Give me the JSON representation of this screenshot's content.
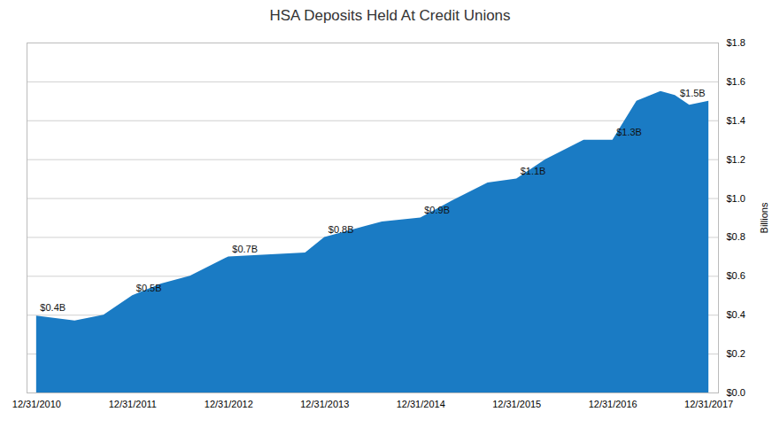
{
  "chart_data": {
    "type": "area",
    "title": "HSA Deposits Held At Credit Unions",
    "y_label": "Billions",
    "color": "#1a7bc4",
    "x": [
      0,
      0.4,
      0.7,
      1.0,
      1.3,
      1.6,
      2.0,
      2.4,
      2.8,
      3.0,
      3.3,
      3.6,
      4.0,
      4.3,
      4.7,
      5.0,
      5.3,
      5.7,
      6.0,
      6.25,
      6.5,
      6.65,
      6.8,
      7.0
    ],
    "values": [
      0.395,
      0.37,
      0.4,
      0.5,
      0.56,
      0.6,
      0.7,
      0.71,
      0.72,
      0.8,
      0.84,
      0.88,
      0.9,
      0.98,
      1.08,
      1.1,
      1.2,
      1.3,
      1.3,
      1.5,
      1.55,
      1.53,
      1.48,
      1.5
    ],
    "xlim": [
      -0.1,
      7.1
    ],
    "xticks": [
      {
        "value": 0,
        "label": "12/31/2010"
      },
      {
        "value": 1,
        "label": "12/31/2011"
      },
      {
        "value": 2,
        "label": "12/31/2012"
      },
      {
        "value": 3,
        "label": "12/31/2013"
      },
      {
        "value": 4,
        "label": "12/31/2014"
      },
      {
        "value": 5,
        "label": "12/31/2015"
      },
      {
        "value": 6,
        "label": "12/31/2016"
      },
      {
        "value": 7,
        "label": "12/31/2017"
      }
    ],
    "ylim": [
      0,
      1.8
    ],
    "yticks": [
      {
        "value": 0.0,
        "label": "$0.0"
      },
      {
        "value": 0.2,
        "label": "$0.2"
      },
      {
        "value": 0.4,
        "label": "$0.4"
      },
      {
        "value": 0.6,
        "label": "$0.6"
      },
      {
        "value": 0.8,
        "label": "$0.8"
      },
      {
        "value": 1.0,
        "label": "$1.0"
      },
      {
        "value": 1.2,
        "label": "$1.2"
      },
      {
        "value": 1.4,
        "label": "$1.4"
      },
      {
        "value": 1.6,
        "label": "$1.6"
      },
      {
        "value": 1.8,
        "label": "$1.8"
      }
    ],
    "grid": true,
    "annotations": [
      {
        "x": 0,
        "y": 0.4,
        "label": "$0.4B"
      },
      {
        "x": 1,
        "y": 0.5,
        "label": "$0.5B"
      },
      {
        "x": 2,
        "y": 0.7,
        "label": "$0.7B"
      },
      {
        "x": 3,
        "y": 0.8,
        "label": "$0.8B"
      },
      {
        "x": 4,
        "y": 0.9,
        "label": "$0.9B"
      },
      {
        "x": 5,
        "y": 1.1,
        "label": "$1.1B"
      },
      {
        "x": 6,
        "y": 1.3,
        "label": "$1.3B"
      },
      {
        "x": 7,
        "y": 1.5,
        "label": "$1.5B"
      }
    ]
  }
}
